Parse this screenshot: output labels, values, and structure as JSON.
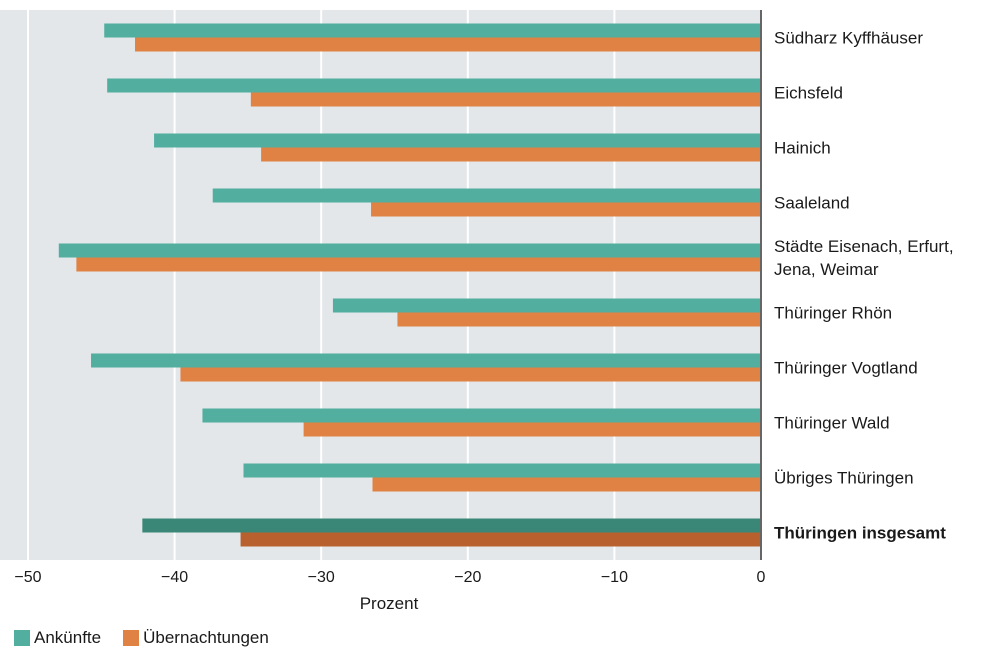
{
  "chart_data": {
    "type": "bar",
    "orientation": "horizontal",
    "categories": [
      [
        "Südharz Kyffhäuser"
      ],
      [
        "Eichsfeld"
      ],
      [
        "Hainich"
      ],
      [
        "Saaleland"
      ],
      [
        "Städte Eisenach, Erfurt,",
        "Jena, Weimar"
      ],
      [
        "Thüringer Rhön"
      ],
      [
        "Thüringer Vogtland"
      ],
      [
        "Thüringer Wald"
      ],
      [
        "Übriges Thüringen"
      ],
      [
        "Thüringen insgesamt"
      ]
    ],
    "highlight_category_index": 9,
    "series": [
      {
        "name": "Ankünfte",
        "color": "#52ae9f",
        "highlight_color": "#3a8777",
        "values": [
          -44.8,
          -44.6,
          -41.4,
          -37.4,
          -47.9,
          -29.2,
          -45.7,
          -38.1,
          -35.3,
          -42.2
        ]
      },
      {
        "name": "Übernachtungen",
        "color": "#e08243",
        "highlight_color": "#b8602e",
        "values": [
          -42.7,
          -34.8,
          -34.1,
          -26.6,
          -46.7,
          -24.8,
          -39.6,
          -31.2,
          -26.5,
          -35.5
        ]
      }
    ],
    "xlim": [
      -50,
      0
    ],
    "xticks": [
      -50,
      -40,
      -30,
      -20,
      -10,
      0
    ],
    "xtick_labels": [
      "−50",
      "−40",
      "−30",
      "−20",
      "−10",
      "0"
    ],
    "xlabel": "Prozent",
    "title": "",
    "grid": true,
    "plot_background": "#e3e7ea",
    "legend_position": "bottom-left"
  },
  "legend": {
    "items": [
      {
        "label": "Ankünfte",
        "color": "#52ae9f"
      },
      {
        "label": "Übernachtungen",
        "color": "#e08243"
      }
    ]
  }
}
